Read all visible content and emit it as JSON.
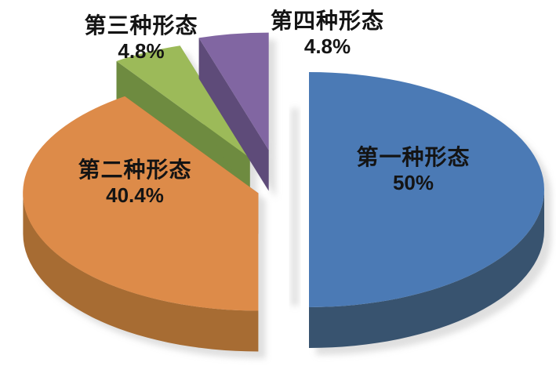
{
  "chart_data": {
    "type": "pie",
    "projection": "3d-exploded",
    "title": "",
    "legend_position": "none",
    "background": "#ffffff",
    "categories": [
      "第一种形态",
      "第二种形态",
      "第三种形态",
      "第四种形态"
    ],
    "values": [
      50,
      40.4,
      4.8,
      4.8
    ],
    "unit": "%",
    "slices": [
      {
        "label": "第一种形态",
        "pct_text": "50%",
        "value": 50,
        "color": "#4b7ab5",
        "side_color": "#38536f",
        "explode": 0.12
      },
      {
        "label": "第二种形态",
        "pct_text": "40.4%",
        "value": 40.4,
        "color": "#dd8b49",
        "side_color": "#a76c33",
        "explode": 0.1
      },
      {
        "label": "第三种形态",
        "pct_text": "4.8%",
        "value": 4.8,
        "color": "#9cba59",
        "side_color": "#6e8b40",
        "explode": 0.3
      },
      {
        "label": "第四种形态",
        "pct_text": "4.8%",
        "value": 4.8,
        "color": "#8166a2",
        "side_color": "#5e4b79",
        "explode": 0.34
      }
    ],
    "label_style": {
      "text_color": "#141414",
      "bold": true
    }
  }
}
